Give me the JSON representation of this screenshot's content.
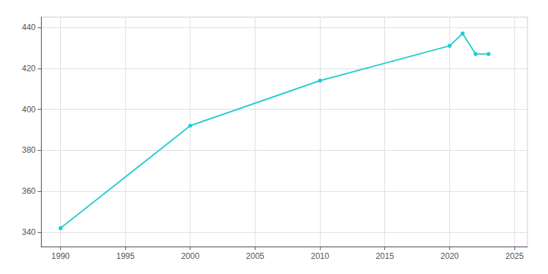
{
  "chart_data": {
    "type": "line",
    "x": [
      1990,
      2000,
      2010,
      2020,
      2021,
      2022,
      2023
    ],
    "values": [
      342,
      392,
      414,
      431,
      437,
      427,
      427
    ],
    "color": "#22CCCC",
    "marker": "circle",
    "xlim": [
      1988.5,
      2026
    ],
    "ylim": [
      333,
      445
    ],
    "xticks": [
      1990,
      1995,
      2000,
      2005,
      2010,
      2015,
      2020,
      2025
    ],
    "yticks": [
      340,
      360,
      380,
      400,
      420,
      440
    ],
    "grid": true
  }
}
